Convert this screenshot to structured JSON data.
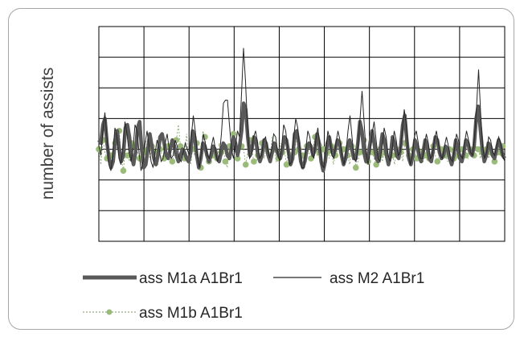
{
  "chart_data": {
    "type": "line",
    "title": "",
    "xlabel": "",
    "ylabel": "number of assists",
    "grid": true,
    "x_ticks_shown": false,
    "y_ticks_shown": false,
    "x_range": [
      0,
      200
    ],
    "ylim": [
      0,
      7
    ],
    "legend_position": "bottom",
    "series": [
      {
        "name": "ass M1a  A1Br1",
        "style": "thick",
        "color": "#595959",
        "values": [
          3.3,
          3.2,
          3.8,
          4.0,
          3.2,
          2.7,
          2.4,
          2.6,
          3.3,
          3.6,
          3.0,
          2.6,
          2.8,
          3.7,
          3.8,
          3.4,
          2.8,
          2.5,
          2.9,
          3.7,
          3.9,
          3.0,
          2.4,
          2.5,
          3.0,
          3.5,
          3.1,
          2.7,
          2.5,
          2.8,
          3.4,
          3.5,
          3.2,
          2.8,
          2.7,
          3.0,
          3.3,
          3.1,
          2.8,
          2.6,
          2.8,
          3.0,
          2.9,
          2.7,
          2.6,
          2.9,
          3.6,
          3.4,
          2.8,
          2.4,
          2.7,
          3.2,
          3.1,
          2.8,
          2.6,
          2.8,
          3.1,
          3.0,
          2.7,
          2.6,
          2.9,
          3.2,
          3.1,
          2.8,
          2.7,
          3.0,
          3.4,
          3.2,
          2.8,
          3.1,
          3.6,
          4.5,
          4.3,
          3.4,
          2.8,
          3.0,
          3.4,
          3.3,
          2.8,
          2.6,
          2.8,
          3.3,
          3.2,
          2.8,
          2.6,
          2.9,
          3.2,
          3.0,
          2.8,
          2.7,
          3.0,
          3.4,
          3.3,
          2.9,
          2.5,
          2.7,
          3.5,
          3.6,
          3.2,
          2.6,
          2.4,
          2.6,
          3.0,
          3.2,
          3.1,
          2.8,
          3.0,
          3.5,
          3.2,
          2.6,
          2.3,
          2.6,
          3.2,
          3.4,
          3.0,
          2.8,
          3.0,
          3.3,
          3.2,
          2.8,
          2.5,
          2.7,
          3.1,
          3.3,
          3.0,
          2.7,
          2.7,
          3.2,
          3.9,
          3.6,
          2.9,
          2.6,
          2.8,
          3.2,
          3.6,
          3.2,
          2.7,
          2.6,
          3.0,
          3.5,
          3.3,
          2.8,
          2.5,
          2.8,
          3.4,
          3.2,
          2.8,
          2.7,
          3.1,
          3.8,
          4.1,
          3.3,
          2.7,
          2.5,
          2.8,
          3.3,
          3.1,
          2.8,
          2.6,
          2.9,
          3.3,
          3.1,
          2.7,
          2.6,
          3.0,
          3.4,
          3.3,
          2.9,
          2.7,
          2.8,
          3.1,
          3.0,
          2.7,
          2.5,
          2.8,
          3.3,
          3.0,
          2.7,
          2.6,
          2.9,
          3.3,
          3.2,
          2.9,
          2.8,
          3.1,
          4.0,
          4.4,
          3.7,
          3.0,
          2.6,
          2.8,
          3.2,
          3.1,
          2.8,
          2.7,
          3.0,
          3.3,
          3.1,
          2.8,
          2.7
        ]
      },
      {
        "name": "ass M2  A1Br1",
        "style": "thin",
        "color": "#262626",
        "values": [
          3.1,
          2.8,
          3.6,
          4.2,
          3.4,
          2.5,
          2.3,
          2.9,
          3.7,
          3.4,
          2.7,
          2.5,
          3.1,
          3.9,
          3.5,
          2.9,
          2.6,
          3.0,
          3.8,
          3.6,
          2.9,
          2.3,
          2.6,
          3.2,
          3.6,
          3.1,
          2.6,
          2.4,
          2.9,
          3.3,
          3.0,
          2.6,
          2.7,
          3.2,
          3.5,
          3.0,
          2.7,
          2.8,
          3.3,
          3.1,
          2.7,
          2.6,
          2.9,
          3.2,
          3.0,
          2.8,
          3.4,
          4.1,
          3.6,
          2.8,
          2.4,
          2.9,
          3.5,
          3.2,
          2.8,
          2.7,
          3.1,
          3.4,
          3.0,
          2.6,
          2.8,
          3.5,
          4.5,
          4.6,
          4.6,
          3.8,
          3.0,
          2.7,
          3.1,
          3.6,
          3.4,
          4.8,
          6.3,
          5.2,
          3.7,
          2.7,
          2.8,
          3.4,
          3.6,
          3.2,
          2.7,
          2.8,
          3.3,
          3.4,
          3.0,
          2.7,
          3.0,
          3.5,
          3.4,
          2.9,
          2.6,
          3.1,
          3.8,
          3.6,
          3.0,
          2.5,
          2.6,
          3.4,
          4.0,
          3.7,
          3.0,
          2.4,
          2.4,
          3.0,
          3.6,
          3.4,
          2.9,
          2.7,
          3.3,
          3.7,
          3.1,
          2.5,
          2.4,
          3.0,
          3.6,
          3.3,
          2.8,
          2.7,
          3.2,
          3.6,
          3.3,
          2.8,
          2.5,
          2.9,
          3.6,
          4.1,
          3.4,
          2.7,
          2.6,
          3.1,
          4.0,
          4.9,
          3.9,
          2.9,
          2.5,
          2.9,
          3.5,
          3.9,
          3.3,
          2.7,
          2.6,
          3.1,
          3.7,
          3.4,
          2.8,
          2.6,
          3.0,
          3.6,
          3.3,
          2.8,
          2.9,
          3.6,
          4.3,
          3.8,
          2.9,
          2.5,
          2.8,
          3.4,
          3.6,
          3.2,
          2.7,
          2.7,
          3.1,
          3.5,
          3.2,
          2.7,
          2.8,
          3.3,
          3.6,
          3.2,
          2.8,
          2.7,
          3.1,
          3.4,
          3.1,
          2.7,
          2.6,
          3.0,
          3.5,
          3.3,
          2.8,
          2.7,
          3.2,
          3.6,
          3.3,
          2.9,
          2.8,
          3.4,
          4.4,
          5.6,
          4.2,
          3.1,
          2.7,
          2.9,
          3.4,
          3.3,
          2.9,
          2.8,
          3.1,
          3.4,
          3.2,
          2.8,
          2.6
        ]
      },
      {
        "name": "ass M1b  A1Br1",
        "style": "dotted-markers",
        "color": "#9bbb7a",
        "values": [
          3.0,
          2.5,
          3.3,
          2.9,
          2.7,
          2.5,
          2.8,
          2.5,
          3.2,
          3.0,
          3.6,
          2.7,
          2.3,
          3.0,
          2.8,
          2.6,
          3.2,
          2.5,
          3.1,
          2.9,
          2.7,
          2.5,
          2.9,
          3.3,
          3.0,
          2.7,
          3.1,
          2.6,
          2.9,
          2.5,
          3.0,
          2.8,
          2.7,
          2.9,
          3.1,
          3.0,
          2.6,
          2.8,
          3.3,
          3.8,
          3.1,
          2.9,
          2.7,
          3.5,
          2.7,
          2.5,
          3.0,
          2.8,
          3.2,
          2.6,
          2.4,
          3.6,
          3.4,
          2.9,
          2.6,
          3.0,
          2.8,
          3.1,
          2.7,
          3.2,
          2.9,
          3.0,
          2.6,
          2.4,
          3.1,
          2.8,
          3.5,
          3.0,
          2.7,
          2.9,
          3.1,
          3.0,
          2.5,
          2.9,
          3.3,
          3.0,
          2.6,
          2.5,
          2.8,
          3.1,
          3.2,
          2.7,
          3.0,
          2.9,
          2.8,
          3.4,
          3.0,
          2.6,
          2.7,
          3.2,
          2.9,
          3.0,
          2.5,
          3.1,
          2.8,
          2.7,
          2.9,
          3.5,
          3.0,
          2.6,
          2.8,
          2.4,
          3.1,
          2.9,
          2.7,
          3.0,
          3.4,
          2.8,
          2.9,
          3.2,
          3.0,
          2.6,
          2.9,
          2.7,
          3.1,
          2.5,
          2.8,
          2.9,
          3.2,
          2.6,
          3.0,
          2.7,
          2.8,
          2.5,
          3.1,
          3.0,
          2.4,
          2.6,
          2.9,
          3.0,
          3.3,
          2.8,
          2.6,
          3.0,
          2.9,
          2.7,
          2.5,
          3.1,
          2.8,
          2.6,
          2.9,
          3.0,
          2.7,
          2.6,
          2.8,
          2.5,
          3.0,
          2.7,
          2.9,
          2.6,
          3.2,
          3.0,
          2.8,
          2.6,
          3.0,
          2.9,
          2.7,
          3.1,
          2.9,
          2.6,
          2.8,
          3.0,
          2.7,
          2.9,
          3.1,
          2.8,
          2.6,
          2.9,
          3.0,
          2.7,
          2.8,
          2.6,
          3.0,
          2.9,
          2.7,
          3.1,
          2.8,
          2.6,
          3.0,
          2.9,
          2.8,
          2.7,
          3.0,
          2.9,
          2.8,
          3.1,
          3.0,
          2.7,
          2.9,
          2.8,
          3.0,
          2.7,
          2.9,
          2.8,
          2.6,
          3.0,
          2.9,
          2.8,
          3.1,
          2.7
        ]
      }
    ]
  }
}
